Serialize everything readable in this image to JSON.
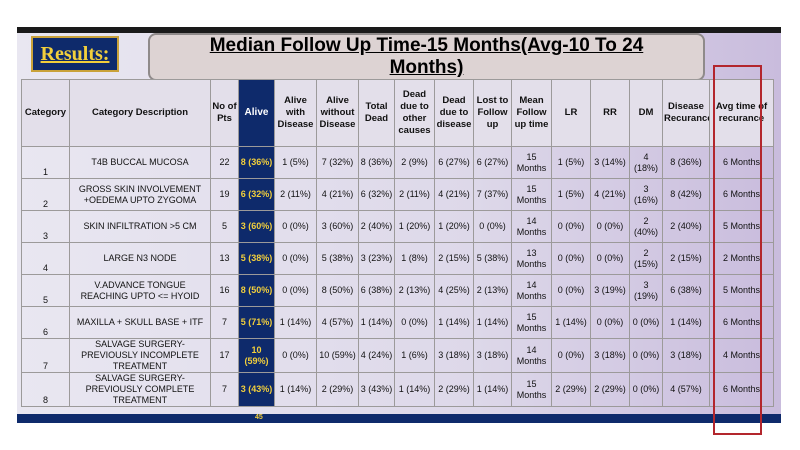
{
  "results_label": "Results:",
  "title_line1": "Median Follow Up Time-15 Months(Avg-10 To 24",
  "title_line2": "Months)",
  "headers": [
    "Category",
    "Category Description",
    "No of Pts",
    "Alive",
    "Alive with Disease",
    "Alive without Disease",
    "Total Dead",
    "Dead due to other causes",
    "Dead due to disease",
    "Lost to Follow up",
    "Mean Follow up time",
    "LR",
    "RR",
    "DM",
    "Disease Recurance",
    "Avg time of recurance"
  ],
  "rows": [
    {
      "cat": "1",
      "desc": "T4B BUCCAL MUCOSA",
      "pts": "22",
      "alive": "8 (36%)",
      "awd": "1 (5%)",
      "awod": "7 (32%)",
      "total_dead": "8 (36%)",
      "dead_other": "2 (9%)",
      "dead_disease": "6 (27%)",
      "lost": "6 (27%)",
      "mean": "15 Months",
      "lr": "1 (5%)",
      "rr": "3 (14%)",
      "dm": "4 (18%)",
      "recur": "8 (36%)",
      "avg": "6 Months"
    },
    {
      "cat": "2",
      "desc": "GROSS SKIN INVOLVEMENT +OEDEMA UPTO ZYGOMA",
      "pts": "19",
      "alive": "6 (32%)",
      "awd": "2 (11%)",
      "awod": "4 (21%)",
      "total_dead": "6 (32%)",
      "dead_other": "2 (11%)",
      "dead_disease": "4 (21%)",
      "lost": "7 (37%)",
      "mean": "15 Months",
      "lr": "1 (5%)",
      "rr": "4 (21%)",
      "dm": "3 (16%)",
      "recur": "8 (42%)",
      "avg": "6 Months"
    },
    {
      "cat": "3",
      "desc": "SKIN INFILTRATION >5 CM",
      "pts": "5",
      "alive": "3 (60%)",
      "awd": "0 (0%)",
      "awod": "3 (60%)",
      "total_dead": "2 (40%)",
      "dead_other": "1 (20%)",
      "dead_disease": "1 (20%)",
      "lost": "0 (0%)",
      "mean": "14 Months",
      "lr": "0 (0%)",
      "rr": "0 (0%)",
      "dm": "2 (40%)",
      "recur": "2 (40%)",
      "avg": "5 Months"
    },
    {
      "cat": "4",
      "desc": "LARGE N3 NODE",
      "pts": "13",
      "alive": "5 (38%)",
      "awd": "0 (0%)",
      "awod": "5 (38%)",
      "total_dead": "3 (23%)",
      "dead_other": "1 (8%)",
      "dead_disease": "2 (15%)",
      "lost": "5 (38%)",
      "mean": "13 Months",
      "lr": "0 (0%)",
      "rr": "0 (0%)",
      "dm": "2 (15%)",
      "recur": "2 (15%)",
      "avg": "2 Months"
    },
    {
      "cat": "5",
      "desc": "V.ADVANCE TONGUE REACHING UPTO <= HYOID",
      "pts": "16",
      "alive": "8 (50%)",
      "awd": "0 (0%)",
      "awod": "8 (50%)",
      "total_dead": "6 (38%)",
      "dead_other": "2 (13%)",
      "dead_disease": "4 (25%)",
      "lost": "2 (13%)",
      "mean": "14 Months",
      "lr": "0 (0%)",
      "rr": "3 (19%)",
      "dm": "3 (19%)",
      "recur": "6 (38%)",
      "avg": "5 Months"
    },
    {
      "cat": "6",
      "desc": "MAXILLA + SKULL BASE + ITF",
      "pts": "7",
      "alive": "5 (71%)",
      "awd": "1 (14%)",
      "awod": "4 (57%)",
      "total_dead": "1 (14%)",
      "dead_other": "0 (0%)",
      "dead_disease": "1 (14%)",
      "lost": "1 (14%)",
      "mean": "15 Months",
      "lr": "1 (14%)",
      "rr": "0 (0%)",
      "dm": "0 (0%)",
      "recur": "1 (14%)",
      "avg": "6 Months"
    },
    {
      "cat": "7",
      "desc": "SALVAGE SURGERY-PREVIOUSLY INCOMPLETE TREATMENT",
      "pts": "17",
      "alive": "10 (59%)",
      "awd": "0 (0%)",
      "awod": "10 (59%)",
      "total_dead": "4 (24%)",
      "dead_other": "1 (6%)",
      "dead_disease": "3 (18%)",
      "lost": "3 (18%)",
      "mean": "14 Months",
      "lr": "0 (0%)",
      "rr": "3 (18%)",
      "dm": "0 (0%)",
      "recur": "3 (18%)",
      "avg": "4 Months"
    },
    {
      "cat": "8",
      "desc": "SALVAGE SURGERY-PREVIOUSLY COMPLETE TREATMENT",
      "pts": "7",
      "alive": "3 (43%)",
      "awd": "1 (14%)",
      "awod": "2 (29%)",
      "total_dead": "3 (43%)",
      "dead_other": "1 (14%)",
      "dead_disease": "2 (29%)",
      "lost": "1 (14%)",
      "mean": "15 Months",
      "lr": "2 (29%)",
      "rr": "2 (29%)",
      "dm": "0 (0%)",
      "recur": "4 (57%)",
      "avg": "6 Months"
    }
  ],
  "bottom_partial": "45",
  "colors": {
    "navy": "#0e2a6b",
    "gold": "#f2cf3c",
    "highlight": "#b3262d"
  }
}
